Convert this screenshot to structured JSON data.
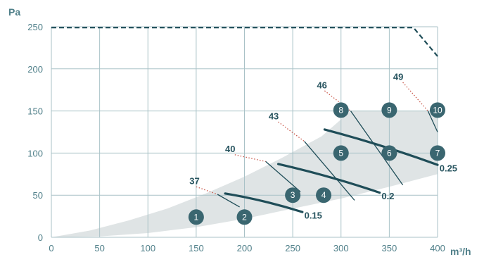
{
  "chart_data": {
    "type": "line",
    "ylabel": "Pa",
    "xlabel": "m³/h",
    "xlim": [
      0,
      400
    ],
    "ylim": [
      0,
      250
    ],
    "xticks": [
      "0",
      "50",
      "100",
      "150",
      "200",
      "250",
      "300",
      "350",
      "400"
    ],
    "yticks": [
      "0",
      "50",
      "100",
      "150",
      "200",
      "250"
    ],
    "grid": true,
    "operating_area": {
      "upper": [
        [
          0,
          0
        ],
        [
          40,
          8
        ],
        [
          80,
          20
        ],
        [
          120,
          34
        ],
        [
          160,
          52
        ],
        [
          200,
          72
        ],
        [
          240,
          95
        ],
        [
          280,
          120
        ],
        [
          310,
          150
        ],
        [
          400,
          150
        ]
      ],
      "lower": [
        [
          400,
          75
        ],
        [
          350,
          60
        ],
        [
          300,
          46
        ],
        [
          250,
          34
        ],
        [
          200,
          22
        ],
        [
          150,
          12
        ],
        [
          100,
          5
        ],
        [
          50,
          1
        ],
        [
          0,
          0
        ]
      ]
    },
    "max_pressure_line": [
      [
        0,
        249
      ],
      [
        375,
        249
      ],
      [
        400,
        215
      ]
    ],
    "speed_curves": [
      {
        "label": "0.15",
        "points": [
          [
            180,
            52
          ],
          [
            260,
            30
          ]
        ]
      },
      {
        "label": "0.2",
        "points": [
          [
            235,
            87
          ],
          [
            340,
            53
          ]
        ]
      },
      {
        "label": "0.25",
        "points": [
          [
            283,
            128
          ],
          [
            400,
            86
          ]
        ]
      }
    ],
    "sound_lines": [
      {
        "label": "37",
        "dotted": [
          [
            150,
            60
          ],
          [
            172,
            51
          ]
        ],
        "solid": [
          [
            172,
            51
          ],
          [
            195,
            36
          ]
        ]
      },
      {
        "label": "40",
        "dotted": [
          [
            190,
            98
          ],
          [
            222,
            90
          ]
        ],
        "solid": [
          [
            222,
            90
          ],
          [
            258,
            54
          ]
        ]
      },
      {
        "label": "43",
        "dotted": [
          [
            235,
            137
          ],
          [
            262,
            114
          ]
        ],
        "solid": [
          [
            262,
            114
          ],
          [
            314,
            44
          ]
        ]
      },
      {
        "label": "46",
        "dotted": [
          [
            283,
            174
          ],
          [
            310,
            150
          ]
        ],
        "solid": [
          [
            310,
            150
          ],
          [
            364,
            62
          ]
        ]
      },
      {
        "label": "49",
        "dotted": [
          [
            364,
            184
          ],
          [
            390,
            150
          ]
        ],
        "solid": [
          [
            390,
            150
          ],
          [
            400,
            125
          ]
        ]
      }
    ],
    "annotations": [
      {
        "text": "37",
        "x": 143,
        "y": 63
      },
      {
        "text": "40",
        "x": 180,
        "y": 101
      },
      {
        "text": "43",
        "x": 225,
        "y": 140
      },
      {
        "text": "46",
        "x": 275,
        "y": 177
      },
      {
        "text": "49",
        "x": 354,
        "y": 187
      },
      {
        "text": "0.15",
        "x": 262,
        "y": 22
      },
      {
        "text": "0.2",
        "x": 342,
        "y": 45
      },
      {
        "text": "0.25",
        "x": 402,
        "y": 78
      }
    ],
    "markers": [
      {
        "label": "1",
        "x": 150,
        "y": 24
      },
      {
        "label": "2",
        "x": 200,
        "y": 24
      },
      {
        "label": "3",
        "x": 250,
        "y": 50
      },
      {
        "label": "4",
        "x": 282,
        "y": 50
      },
      {
        "label": "5",
        "x": 300,
        "y": 100
      },
      {
        "label": "6",
        "x": 350,
        "y": 100
      },
      {
        "label": "7",
        "x": 400,
        "y": 100
      },
      {
        "label": "8",
        "x": 300,
        "y": 151
      },
      {
        "label": "9",
        "x": 350,
        "y": 151
      },
      {
        "label": "10",
        "x": 400,
        "y": 151
      }
    ],
    "colors": {
      "grid": "#a9c2c7",
      "axis_text": "#4f7f89",
      "area": "#dfe4e5",
      "curve": "#1f4d58",
      "marker": "#3a6670",
      "sound_dot": "#c9584b"
    }
  }
}
